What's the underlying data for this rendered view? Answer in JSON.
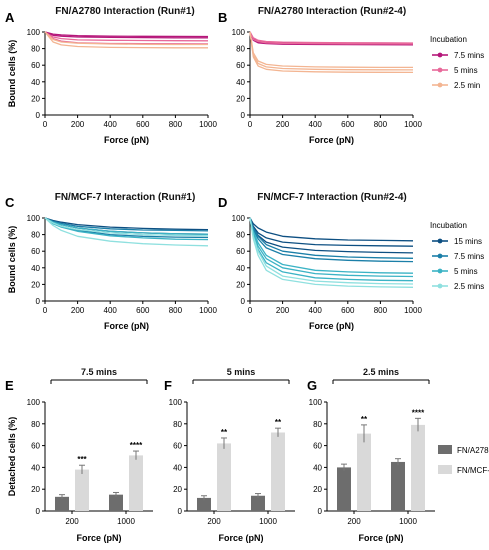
{
  "panels": [
    {
      "label": "A",
      "title": "FN/A2780 Interaction (Run#1)",
      "xlabel": "Force (pN)",
      "ylabel": "Bound cells (%)"
    },
    {
      "label": "B",
      "title": "FN/A2780 Interaction (Run#2-4)",
      "xlabel": "Force (pN)",
      "ylabel": ""
    },
    {
      "label": "C",
      "title": "FN/MCF-7 Interaction (Run#1)",
      "xlabel": "Force (pN)",
      "ylabel": "Bound cells (%)"
    },
    {
      "label": "D",
      "title": "FN/MCF-7 Interaction (Run#2-4)",
      "xlabel": "Force (pN)",
      "ylabel": ""
    },
    {
      "label": "E",
      "title": "7.5 mins",
      "xlabel": "Force (pN)",
      "ylabel": "Detached cells (%)"
    },
    {
      "label": "F",
      "title": "5 mins",
      "xlabel": "Force (pN)",
      "ylabel": ""
    },
    {
      "label": "G",
      "title": "2.5 mins",
      "xlabel": "Force (pN)",
      "ylabel": ""
    }
  ],
  "legend_ab": {
    "title": "Incubation",
    "items": [
      {
        "label": "7.5 mins",
        "color": "#b5177a"
      },
      {
        "label": "5 mins",
        "color": "#e8699a"
      },
      {
        "label": "2.5 min",
        "color": "#f3b592"
      }
    ]
  },
  "legend_cd": {
    "title": "Incubation",
    "items": [
      {
        "label": "15 mins",
        "color": "#0d4f82"
      },
      {
        "label": "7.5 mins",
        "color": "#1b7fa8"
      },
      {
        "label": "5 mins",
        "color": "#3bb3c5"
      },
      {
        "label": "2.5 mins",
        "color": "#8fe0df"
      }
    ]
  },
  "legend_bar": {
    "items": [
      {
        "label": "FN/A2780",
        "color": "#6d6d6d"
      },
      {
        "label": "FN/MCF-7",
        "color": "#d9d9d9"
      }
    ]
  },
  "chart_data": [
    {
      "type": "line",
      "panel": "A",
      "xlim": [
        0,
        1000
      ],
      "ylim": [
        0,
        100
      ],
      "x_ticks": [
        0,
        200,
        400,
        600,
        800,
        1000
      ],
      "y_ticks": [
        0,
        20,
        40,
        60,
        80,
        100
      ],
      "series": [
        {
          "color": "#b5177a",
          "values_at": [
            0,
            50,
            100,
            200,
            400,
            600,
            800,
            1000
          ],
          "curves": [
            [
              100,
              97.5,
              96.5,
              95.5,
              95,
              94.8,
              94.7,
              94.6
            ],
            [
              100,
              96,
              95,
              94,
              93.5,
              93.2,
              93,
              93
            ]
          ]
        },
        {
          "color": "#e8699a",
          "values_at": [
            0,
            50,
            100,
            200,
            400,
            600,
            800,
            1000
          ],
          "curves": [
            [
              100,
              94,
              92,
              90.5,
              90,
              89.7,
              89.5,
              89.4
            ],
            [
              100,
              92,
              89,
              87,
              86.2,
              86,
              85.8,
              85.7
            ]
          ]
        },
        {
          "color": "#f3b592",
          "values_at": [
            0,
            50,
            100,
            200,
            400,
            600,
            800,
            1000
          ],
          "curves": [
            [
              100,
              91,
              88,
              86.5,
              85.5,
              85.2,
              85,
              85
            ],
            [
              100,
              88,
              84.5,
              82.5,
              81.5,
              81.2,
              81,
              81
            ]
          ]
        }
      ]
    },
    {
      "type": "line",
      "panel": "B",
      "xlim": [
        0,
        1000
      ],
      "ylim": [
        0,
        100
      ],
      "x_ticks": [
        0,
        200,
        400,
        600,
        800,
        1000
      ],
      "y_ticks": [
        0,
        20,
        40,
        60,
        80,
        100
      ],
      "series": [
        {
          "name": "7.5 mins",
          "color": "#b5177a",
          "values_at": [
            0,
            20,
            50,
            100,
            200,
            400,
            600,
            800,
            1000
          ],
          "curves": [
            [
              100,
              92,
              89,
              88,
              87.3,
              87,
              86.8,
              86.7,
              86.6
            ],
            [
              100,
              91,
              88,
              86.8,
              86.2,
              85.8,
              85.6,
              85.5,
              85.5
            ],
            [
              100,
              90,
              87,
              86,
              85.3,
              85,
              84.8,
              84.7,
              84.6
            ]
          ]
        },
        {
          "name": "5 mins",
          "color": "#e8699a",
          "values_at": [
            0,
            20,
            50,
            100,
            200,
            400,
            600,
            800,
            1000
          ],
          "curves": [
            [
              100,
              93,
              90,
              88.5,
              87.8,
              87.3,
              87,
              86.9,
              86.8
            ],
            [
              100,
              91,
              88.5,
              87,
              86.3,
              86,
              85.8,
              85.7,
              85.6
            ]
          ]
        },
        {
          "name": "2.5 min",
          "color": "#f3b592",
          "values_at": [
            0,
            20,
            50,
            100,
            200,
            400,
            600,
            800,
            1000
          ],
          "curves": [
            [
              100,
              75,
              65,
              61,
              59,
              58,
              57.6,
              57.4,
              57.3
            ],
            [
              100,
              72,
              62,
              58,
              56,
              55,
              54.6,
              54.4,
              54.3
            ],
            [
              100,
              70,
              59,
              55,
              53,
              52,
              51.6,
              51.4,
              51.3
            ]
          ]
        }
      ]
    },
    {
      "type": "line",
      "panel": "C",
      "xlim": [
        0,
        1000
      ],
      "ylim": [
        0,
        100
      ],
      "x_ticks": [
        0,
        200,
        400,
        600,
        800,
        1000
      ],
      "y_ticks": [
        0,
        20,
        40,
        60,
        80,
        100
      ],
      "series": [
        {
          "color": "#0d4f82",
          "values_at": [
            0,
            50,
            100,
            200,
            400,
            600,
            800,
            1000
          ],
          "curves": [
            [
              100,
              97,
              95,
              92,
              89,
              87.5,
              86.5,
              86
            ],
            [
              100,
              95,
              92,
              88,
              84,
              82,
              81,
              80.5
            ]
          ]
        },
        {
          "color": "#1b7fa8",
          "values_at": [
            0,
            50,
            100,
            200,
            400,
            600,
            800,
            1000
          ],
          "curves": [
            [
              100,
              96,
              93.5,
              90,
              87,
              85.5,
              85,
              84.5
            ],
            [
              100,
              94,
              90,
              85,
              80,
              78,
              77,
              76.5
            ]
          ]
        },
        {
          "color": "#3bb3c5",
          "values_at": [
            0,
            50,
            100,
            200,
            400,
            600,
            800,
            1000
          ],
          "curves": [
            [
              100,
              95,
              92,
              88,
              84,
              82,
              81,
              80.5
            ],
            [
              100,
              93,
              89,
              84,
              78.5,
              76,
              74.5,
              74
            ]
          ]
        },
        {
          "color": "#8fe0df",
          "values_at": [
            0,
            50,
            100,
            200,
            400,
            600,
            800,
            1000
          ],
          "curves": [
            [
              100,
              91,
              85,
              78,
              72,
              69,
              67.5,
              66.5
            ],
            [
              100,
              94,
              90,
              86,
              82,
              80,
              79,
              78.5
            ]
          ]
        }
      ]
    },
    {
      "type": "line",
      "panel": "D",
      "xlim": [
        0,
        1000
      ],
      "ylim": [
        0,
        100
      ],
      "x_ticks": [
        0,
        200,
        400,
        600,
        800,
        1000
      ],
      "y_ticks": [
        0,
        20,
        40,
        60,
        80,
        100
      ],
      "series": [
        {
          "name": "15 mins",
          "color": "#0d4f82",
          "values_at": [
            0,
            20,
            50,
            100,
            200,
            400,
            600,
            800,
            1000
          ],
          "curves": [
            [
              100,
              93,
              88,
              83,
              78,
              75,
              73.5,
              73,
              72.5
            ],
            [
              100,
              90,
              82,
              76,
              71,
              68,
              67,
              66.5,
              66
            ],
            [
              100,
              88,
              79,
              71,
              65,
              61,
              59.5,
              58.5,
              58
            ]
          ]
        },
        {
          "name": "7.5 mins",
          "color": "#1b7fa8",
          "values_at": [
            0,
            20,
            50,
            100,
            200,
            400,
            600,
            800,
            1000
          ],
          "curves": [
            [
              100,
              88,
              78,
              68,
              60,
              55,
              53,
              52,
              51.5
            ],
            [
              100,
              86,
              75,
              64,
              56,
              51,
              49,
              48,
              47.5
            ]
          ]
        },
        {
          "name": "5 mins",
          "color": "#3bb3c5",
          "values_at": [
            0,
            20,
            50,
            100,
            200,
            400,
            600,
            800,
            1000
          ],
          "curves": [
            [
              100,
              84,
              70,
              55,
              44,
              37,
              35,
              34,
              33.5
            ],
            [
              100,
              82,
              66,
              51,
              40,
              33,
              31,
              30,
              29.5
            ],
            [
              100,
              80,
              62,
              46,
              35,
              28,
              26,
              25,
              24.5
            ]
          ]
        },
        {
          "name": "2.5 mins",
          "color": "#8fe0df",
          "values_at": [
            0,
            20,
            50,
            100,
            200,
            400,
            600,
            800,
            1000
          ],
          "curves": [
            [
              100,
              78,
              60,
              42,
              30,
              24,
              22,
              21,
              20.5
            ],
            [
              100,
              75,
              55,
              37,
              26,
              20,
              18,
              17,
              16.5
            ]
          ]
        }
      ]
    },
    {
      "type": "bar",
      "panel": "E",
      "categories": [
        "200",
        "1000"
      ],
      "ylim": [
        0,
        100
      ],
      "y_ticks": [
        0,
        20,
        40,
        60,
        80,
        100
      ],
      "series": [
        {
          "name": "FN/A2780",
          "values": [
            13,
            15
          ],
          "errors": [
            2,
            2
          ]
        },
        {
          "name": "FN/MCF-7",
          "values": [
            38,
            51
          ],
          "errors": [
            4,
            4
          ]
        }
      ],
      "significance": [
        "***",
        "****"
      ]
    },
    {
      "type": "bar",
      "panel": "F",
      "categories": [
        "200",
        "1000"
      ],
      "ylim": [
        0,
        100
      ],
      "y_ticks": [
        0,
        20,
        40,
        60,
        80,
        100
      ],
      "series": [
        {
          "name": "FN/A2780",
          "values": [
            12,
            14
          ],
          "errors": [
            2,
            2
          ]
        },
        {
          "name": "FN/MCF-7",
          "values": [
            62,
            72
          ],
          "errors": [
            5,
            4
          ]
        }
      ],
      "significance": [
        "**",
        "**"
      ]
    },
    {
      "type": "bar",
      "panel": "G",
      "categories": [
        "200",
        "1000"
      ],
      "ylim": [
        0,
        100
      ],
      "y_ticks": [
        0,
        20,
        40,
        60,
        80,
        100
      ],
      "series": [
        {
          "name": "FN/A2780",
          "values": [
            40,
            45
          ],
          "errors": [
            3,
            3
          ]
        },
        {
          "name": "FN/MCF-7",
          "values": [
            71,
            79
          ],
          "errors": [
            8,
            6
          ]
        }
      ],
      "significance": [
        "**",
        "****"
      ]
    }
  ]
}
